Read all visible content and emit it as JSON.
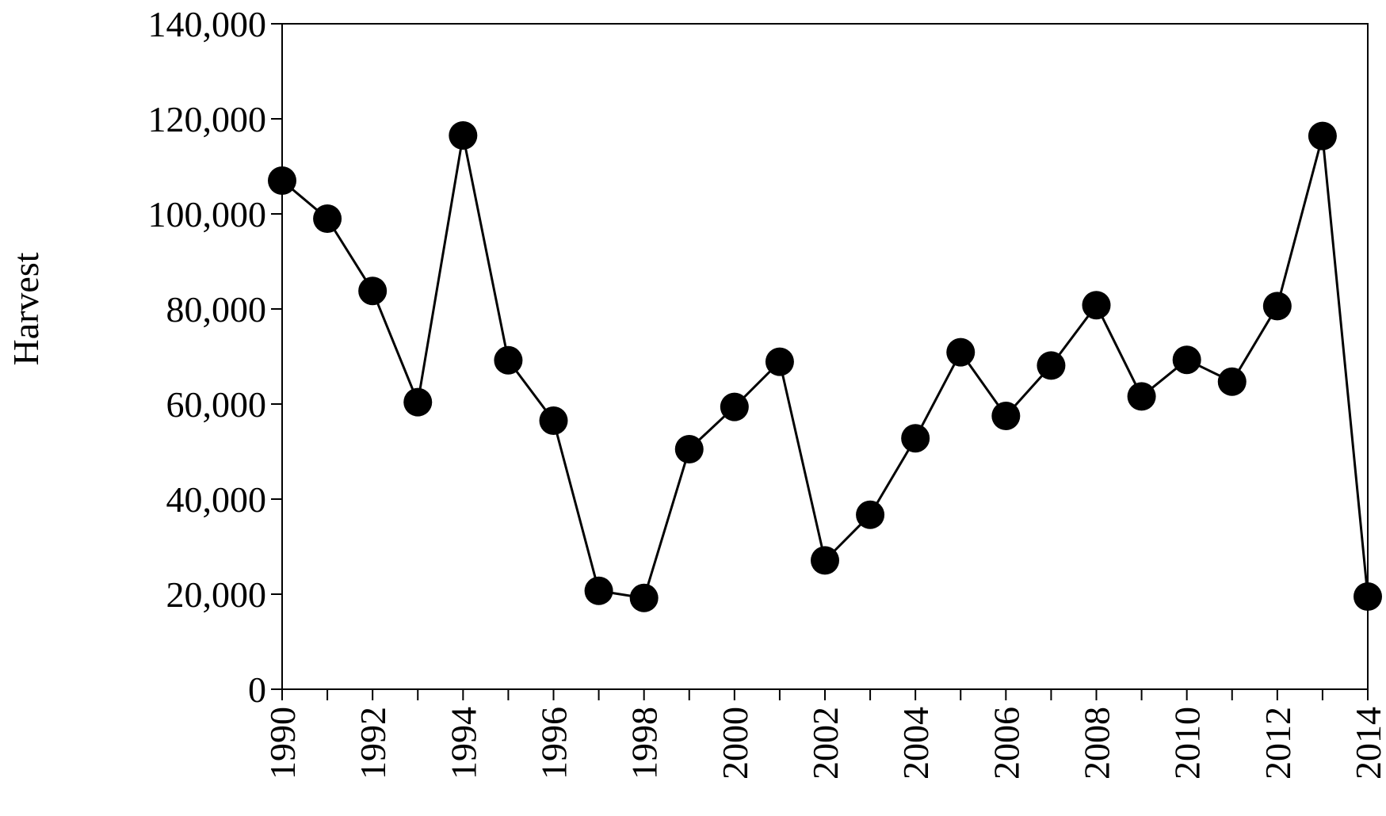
{
  "chart_data": {
    "type": "line",
    "title": "",
    "xlabel": "",
    "ylabel": "Harvest",
    "x": [
      1990,
      1991,
      1992,
      1993,
      1994,
      1995,
      1996,
      1997,
      1998,
      1999,
      2000,
      2001,
      2002,
      2003,
      2004,
      2005,
      2006,
      2007,
      2008,
      2009,
      2010,
      2011,
      2012,
      2013,
      2014
    ],
    "series": [
      {
        "values": [
          107000,
          99000,
          83800,
          60400,
          116500,
          69200,
          56500,
          20700,
          19200,
          50500,
          59400,
          68900,
          27100,
          36700,
          52800,
          70900,
          57500,
          68100,
          80800,
          61600,
          69300,
          64700,
          80600,
          116400,
          19500
        ],
        "marker": "filled-circle",
        "color": "#000000"
      }
    ],
    "xlim": [
      1990,
      2014
    ],
    "ylim": [
      0,
      140000
    ],
    "y_ticks": [
      0,
      20000,
      40000,
      60000,
      80000,
      100000,
      120000,
      140000
    ],
    "y_tick_labels": [
      "0",
      "20,000",
      "40,000",
      "60,000",
      "80,000",
      "100,000",
      "120,000",
      "140,000"
    ],
    "x_tick_labels": [
      "1990",
      "1992",
      "1994",
      "1996",
      "1998",
      "2000",
      "2002",
      "2004",
      "2006",
      "2008",
      "2010",
      "2012",
      "2014"
    ],
    "x_tick_label_rotation": "vertical",
    "grid": false,
    "legend": "none"
  }
}
